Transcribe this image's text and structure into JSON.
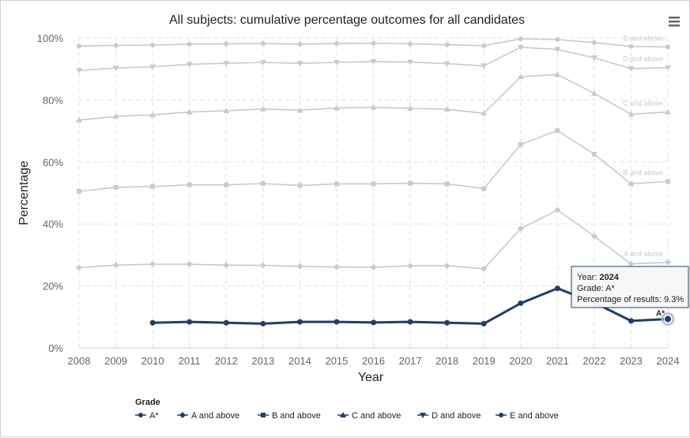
{
  "chart_data": {
    "type": "line",
    "title": "All subjects: cumulative percentage outcomes for all candidates",
    "xlabel": "Year",
    "ylabel": "Percentage",
    "ylim": [
      0,
      100
    ],
    "yticks": [
      "0%",
      "20%",
      "40%",
      "60%",
      "80%",
      "100%"
    ],
    "x": [
      "2008",
      "2009",
      "2010",
      "2011",
      "2012",
      "2013",
      "2014",
      "2015",
      "2016",
      "2017",
      "2018",
      "2019",
      "2020",
      "2021",
      "2022",
      "2023",
      "2024"
    ],
    "grid": true,
    "legend_title": "Grade",
    "legend_position": "bottom",
    "highlighted_series": "A*",
    "series": [
      {
        "name": "A*",
        "marker": "circle",
        "end_label": "A*",
        "color": "#1f3f66",
        "values": [
          null,
          null,
          8.1,
          8.4,
          8.1,
          7.8,
          8.4,
          8.4,
          8.2,
          8.4,
          8.1,
          7.8,
          14.4,
          19.2,
          14.6,
          8.7,
          9.3
        ]
      },
      {
        "name": "A and above",
        "marker": "diamond",
        "end_label": "A and above",
        "color": "#c4cbd3",
        "values": [
          25.9,
          26.7,
          27.0,
          27.0,
          26.7,
          26.6,
          26.3,
          26.1,
          26.0,
          26.5,
          26.5,
          25.5,
          38.5,
          44.5,
          36.0,
          27.1,
          27.6
        ]
      },
      {
        "name": "B and above",
        "marker": "square",
        "end_label": "B and above",
        "color": "#c4cbd3",
        "values": [
          50.5,
          51.8,
          52.1,
          52.6,
          52.6,
          53.0,
          52.4,
          52.9,
          52.9,
          53.1,
          52.9,
          51.4,
          65.6,
          70.1,
          62.5,
          52.9,
          53.7
        ]
      },
      {
        "name": "C and above",
        "marker": "triangle-up",
        "end_label": "C and above",
        "color": "#c4cbd3",
        "values": [
          73.5,
          74.7,
          75.2,
          76.1,
          76.5,
          77.1,
          76.7,
          77.4,
          77.6,
          77.3,
          77.0,
          75.7,
          87.5,
          88.2,
          82.1,
          75.4,
          76.1
        ]
      },
      {
        "name": "D and above",
        "marker": "triangle-down",
        "end_label": "D and above",
        "color": "#c4cbd3",
        "values": [
          89.5,
          90.3,
          90.7,
          91.5,
          91.8,
          92.1,
          91.8,
          92.1,
          92.4,
          92.2,
          91.7,
          91.0,
          97.0,
          96.3,
          93.6,
          90.1,
          90.4
        ]
      },
      {
        "name": "E and above",
        "marker": "circle",
        "end_label": "E and above",
        "color": "#c4cbd3",
        "values": [
          97.4,
          97.6,
          97.7,
          98.0,
          98.1,
          98.2,
          98.0,
          98.2,
          98.3,
          98.1,
          97.8,
          97.5,
          99.7,
          99.5,
          98.5,
          97.3,
          97.1
        ]
      }
    ],
    "tooltip": {
      "year_label": "Year: ",
      "year_value": "2024",
      "grade_label": "Grade: ",
      "grade_value": "A*",
      "pct_label": "Percentage of results: ",
      "pct_value": "9.3%"
    }
  },
  "menu": {
    "icon": "hamburger-menu-icon"
  }
}
